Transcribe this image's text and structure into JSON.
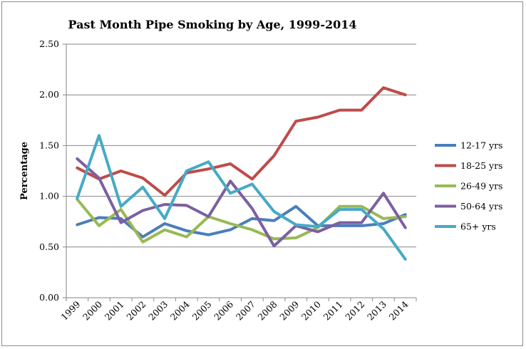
{
  "chart_data": {
    "type": "line",
    "title": "Past Month Pipe Smoking by Age, 1999-2014",
    "xlabel": "",
    "ylabel": "Percentage",
    "ylim": [
      0,
      2.5
    ],
    "yticks": [
      "0.00",
      "0.50",
      "1.00",
      "1.50",
      "2.00",
      "2.50"
    ],
    "grid": "horizontal",
    "legend_position": "right",
    "categories": [
      "1999",
      "2000",
      "2001",
      "2002",
      "2003",
      "2004",
      "2005",
      "2006",
      "2007",
      "2008",
      "2009",
      "2010",
      "2011",
      "2012",
      "2013",
      "2014"
    ],
    "series": [
      {
        "name": "12-17 yrs",
        "color": "#4a7ebb",
        "values": [
          0.72,
          0.79,
          0.78,
          0.6,
          0.73,
          0.66,
          0.62,
          0.67,
          0.78,
          0.76,
          0.9,
          0.71,
          0.71,
          0.71,
          0.73,
          0.82
        ]
      },
      {
        "name": "18-25 yrs",
        "color": "#be4b48",
        "values": [
          1.28,
          1.17,
          1.25,
          1.18,
          1.01,
          1.23,
          1.27,
          1.32,
          1.17,
          1.4,
          1.74,
          1.78,
          1.85,
          1.85,
          2.07,
          2.0
        ]
      },
      {
        "name": "26-49 yrs",
        "color": "#98b954",
        "values": [
          0.97,
          0.71,
          0.87,
          0.55,
          0.67,
          0.6,
          0.8,
          0.73,
          0.67,
          0.58,
          0.59,
          0.69,
          0.9,
          0.9,
          0.78,
          0.8
        ]
      },
      {
        "name": "50-64 yrs",
        "color": "#7d5fa0",
        "values": [
          1.37,
          1.18,
          0.74,
          0.86,
          0.92,
          0.91,
          0.8,
          1.15,
          0.88,
          0.51,
          0.71,
          0.65,
          0.74,
          0.74,
          1.03,
          0.69
        ]
      },
      {
        "name": "65+ yrs",
        "color": "#46aac5",
        "values": [
          0.98,
          1.6,
          0.9,
          1.09,
          0.78,
          1.25,
          1.34,
          1.03,
          1.12,
          0.85,
          0.72,
          0.7,
          0.87,
          0.87,
          0.68,
          0.38
        ]
      }
    ]
  }
}
